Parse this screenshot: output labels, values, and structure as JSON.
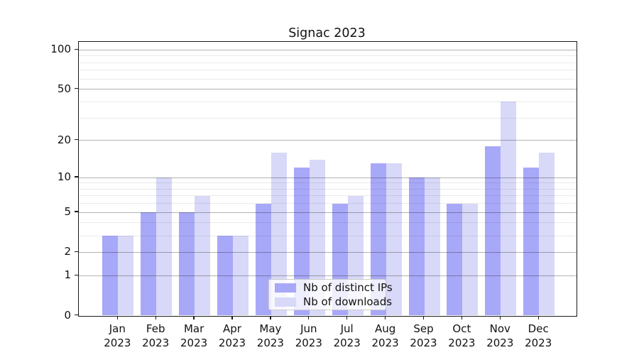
{
  "title": "Signac 2023",
  "chart_data": {
    "type": "bar",
    "title": "Signac 2023",
    "categories": [
      "Jan",
      "Feb",
      "Mar",
      "Apr",
      "May",
      "Jun",
      "Jul",
      "Aug",
      "Sep",
      "Oct",
      "Nov",
      "Dec"
    ],
    "year": "2023",
    "series": [
      {
        "name": "Nb of distinct IPs",
        "color": "#a8a8f8",
        "values": [
          3,
          5,
          5,
          3,
          6,
          12,
          6,
          13,
          10,
          6,
          18,
          12
        ]
      },
      {
        "name": "Nb of downloads",
        "color": "#d8d8f8",
        "values": [
          3,
          10,
          7,
          3,
          16,
          14,
          7,
          13,
          10,
          6,
          40,
          16
        ]
      }
    ],
    "yscale": "log1p",
    "ylim": [
      0,
      115
    ],
    "yticks": [
      0,
      1,
      2,
      5,
      10,
      20,
      50,
      100
    ],
    "yticks_minor": [
      3,
      4,
      6,
      7,
      8,
      9,
      30,
      40,
      60,
      70,
      80,
      90
    ],
    "grid": true,
    "legend_position": "lower center",
    "axis_color": "#1a1a1a"
  }
}
